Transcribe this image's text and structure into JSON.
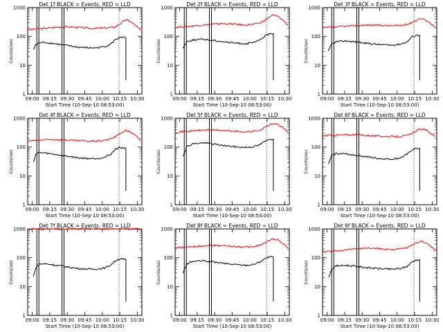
{
  "figure": {
    "panel_size": [
      213,
      160
    ],
    "font": "DejaVu Sans"
  },
  "chart_data": [
    {
      "type": "line",
      "title": "Det 1f BLACK = Events, RED = LLD",
      "xlabel": "Start Time (10-Sep-10 08:53:00)",
      "ylabel": "Counts/sec",
      "xticks": [
        "09:00",
        "09:15",
        "09:30",
        "09:45",
        "10:00",
        "10:15",
        "10:30"
      ],
      "yticks": [
        "1",
        "10",
        "100",
        "1000"
      ],
      "log_y": true,
      "ylim": [
        1,
        1000
      ],
      "series": [
        {
          "name": "LLD",
          "color": "#ff0000",
          "x": [
            0,
            0.07,
            0.15,
            0.25,
            0.35,
            0.45,
            0.55,
            0.63,
            0.7,
            0.76,
            0.81,
            0.86,
            0.9,
            0.95,
            0.99
          ],
          "values": [
            170,
            180,
            190,
            210,
            215,
            205,
            190,
            195,
            200,
            210,
            280,
            380,
            330,
            230,
            160
          ]
        },
        {
          "name": "Events",
          "color": "#000000",
          "x": [
            0.05,
            0.07,
            0.1,
            0.15,
            0.25,
            0.35,
            0.45,
            0.55,
            0.62,
            0.68,
            0.73,
            0.77,
            0.8,
            0.83,
            0.86
          ],
          "values": [
            35,
            50,
            60,
            62,
            55,
            48,
            42,
            40,
            41,
            45,
            55,
            80,
            88,
            90,
            90
          ]
        }
      ]
    },
    {
      "type": "line",
      "title": "Det 2f BLACK = Events, RED = LLD",
      "xlabel": "Start Time (10-Sep-10 08:53:00)",
      "ylabel": "Counts/sec",
      "xticks": [
        "09:00",
        "09:15",
        "09:30",
        "09:45",
        "10:00",
        "10:15",
        "10:30"
      ],
      "yticks": [
        "1",
        "10",
        "100",
        "1000"
      ],
      "log_y": true,
      "ylim": [
        1,
        1000
      ],
      "series": [
        {
          "name": "LLD",
          "color": "#ff0000",
          "x": [
            0,
            0.1,
            0.2,
            0.3,
            0.4,
            0.5,
            0.6,
            0.68,
            0.75,
            0.8,
            0.85,
            0.9,
            0.95,
            0.99
          ],
          "values": [
            210,
            220,
            240,
            260,
            280,
            270,
            250,
            260,
            300,
            400,
            550,
            500,
            350,
            240
          ]
        },
        {
          "name": "Events",
          "color": "#000000",
          "x": [
            0.07,
            0.1,
            0.15,
            0.25,
            0.35,
            0.45,
            0.55,
            0.62,
            0.68,
            0.73,
            0.78,
            0.82,
            0.86
          ],
          "values": [
            40,
            65,
            75,
            80,
            72,
            63,
            58,
            56,
            60,
            70,
            100,
            120,
            125
          ]
        }
      ]
    },
    {
      "type": "line",
      "title": "Det 3f BLACK = Events, RED = LLD",
      "xlabel": "Start Time (10-Sep-10 08:53:00)",
      "ylabel": "Counts/sec",
      "xticks": [
        "09:00",
        "09:15",
        "09:30",
        "09:45",
        "10:00",
        "10:15",
        "10:30"
      ],
      "yticks": [
        "1",
        "10",
        "100",
        "1000"
      ],
      "log_y": true,
      "ylim": [
        1,
        1000
      ],
      "series": [
        {
          "name": "LLD",
          "color": "#ff0000",
          "x": [
            0,
            0.1,
            0.2,
            0.3,
            0.4,
            0.5,
            0.6,
            0.68,
            0.75,
            0.8,
            0.85,
            0.9,
            0.95,
            0.99
          ],
          "values": [
            200,
            210,
            225,
            240,
            250,
            245,
            235,
            240,
            270,
            330,
            420,
            380,
            280,
            200
          ]
        },
        {
          "name": "Events",
          "color": "#000000",
          "x": [
            0.05,
            0.08,
            0.12,
            0.2,
            0.3,
            0.4,
            0.5,
            0.6,
            0.68,
            0.74,
            0.78,
            0.82,
            0.85
          ],
          "values": [
            30,
            55,
            65,
            70,
            64,
            57,
            52,
            50,
            54,
            65,
            95,
            110,
            110
          ]
        }
      ]
    },
    {
      "type": "line",
      "title": "Det 4f BLACK = Events, RED = LLD",
      "xlabel": "Start Time (10-Sep-10 08:53:00)",
      "ylabel": "Counts/sec",
      "xticks": [
        "09:00",
        "09:15",
        "09:30",
        "09:45",
        "10:00",
        "10:15",
        "10:30"
      ],
      "yticks": [
        "1",
        "10",
        "100",
        "1000"
      ],
      "log_y": true,
      "ylim": [
        1,
        1000
      ],
      "series": [
        {
          "name": "LLD",
          "color": "#ff0000",
          "x": [
            0,
            0.07,
            0.15,
            0.25,
            0.35,
            0.45,
            0.55,
            0.63,
            0.7,
            0.76,
            0.81,
            0.86,
            0.9,
            0.95,
            0.99
          ],
          "values": [
            160,
            170,
            180,
            185,
            175,
            165,
            160,
            165,
            180,
            220,
            300,
            380,
            340,
            240,
            160
          ]
        },
        {
          "name": "Events",
          "color": "#000000",
          "x": [
            0.05,
            0.07,
            0.1,
            0.15,
            0.25,
            0.35,
            0.45,
            0.55,
            0.62,
            0.68,
            0.73,
            0.77,
            0.8,
            0.83,
            0.86
          ],
          "values": [
            30,
            55,
            65,
            62,
            55,
            48,
            42,
            40,
            41,
            45,
            58,
            85,
            95,
            95,
            90
          ]
        }
      ]
    },
    {
      "type": "line",
      "title": "Det 5f BLACK = Events, RED = LLD",
      "xlabel": "Start Time (10-Sep-10 08:53:00)",
      "ylabel": "Counts/sec",
      "xticks": [
        "09:00",
        "09:15",
        "09:30",
        "09:45",
        "10:00",
        "10:15",
        "10:30"
      ],
      "yticks": [
        "1",
        "10",
        "100",
        "1000"
      ],
      "log_y": true,
      "ylim": [
        1,
        1000
      ],
      "series": [
        {
          "name": "LLD",
          "color": "#ff0000",
          "x": [
            0,
            0.1,
            0.2,
            0.3,
            0.4,
            0.5,
            0.6,
            0.68,
            0.75,
            0.8,
            0.85,
            0.9,
            0.95,
            0.99
          ],
          "values": [
            330,
            350,
            380,
            400,
            380,
            360,
            340,
            350,
            400,
            520,
            650,
            600,
            450,
            330
          ]
        },
        {
          "name": "Events",
          "color": "#000000",
          "x": [
            0.07,
            0.1,
            0.15,
            0.25,
            0.35,
            0.45,
            0.55,
            0.62,
            0.68,
            0.73,
            0.78,
            0.82,
            0.86
          ],
          "values": [
            50,
            100,
            130,
            140,
            125,
            110,
            100,
            98,
            102,
            115,
            150,
            190,
            190
          ]
        }
      ]
    },
    {
      "type": "line",
      "title": "Det 6f BLACK = Events, RED = LLD",
      "xlabel": "Start Time (10-Sep-10 08:53:00)",
      "ylabel": "Counts/sec",
      "xticks": [
        "09:00",
        "09:15",
        "09:30",
        "09:45",
        "10:00",
        "10:15",
        "10:30"
      ],
      "yticks": [
        "1",
        "10",
        "100",
        "1000"
      ],
      "log_y": true,
      "ylim": [
        1,
        1000
      ],
      "series": [
        {
          "name": "LLD",
          "color": "#ff0000",
          "x": [
            0,
            0.1,
            0.2,
            0.3,
            0.4,
            0.5,
            0.6,
            0.68,
            0.75,
            0.8,
            0.85,
            0.9,
            0.95,
            0.99
          ],
          "values": [
            250,
            260,
            265,
            270,
            255,
            240,
            230,
            235,
            260,
            320,
            420,
            400,
            300,
            230
          ]
        },
        {
          "name": "Events",
          "color": "#000000",
          "x": [
            0.05,
            0.08,
            0.12,
            0.2,
            0.3,
            0.4,
            0.5,
            0.6,
            0.68,
            0.74,
            0.78,
            0.82,
            0.85
          ],
          "values": [
            25,
            50,
            60,
            58,
            52,
            45,
            40,
            38,
            42,
            55,
            80,
            90,
            90
          ]
        }
      ]
    },
    {
      "type": "line",
      "title": "Det 7f BLACK = Events, RED = LLD",
      "xlabel": "Start Time (10-Sep-10 08:53:00)",
      "ylabel": "Counts/sec",
      "xticks": [
        "09:00",
        "09:15",
        "09:30",
        "09:45",
        "10:00",
        "10:15",
        "10:30"
      ],
      "yticks": [
        "1",
        "10",
        "100",
        "1000"
      ],
      "log_y": true,
      "ylim": [
        1,
        1000
      ],
      "series": [
        {
          "name": "LLD",
          "color": "#ff0000",
          "x": [
            0,
            0.1,
            0.2,
            0.3,
            0.4,
            0.5,
            0.6,
            0.7,
            0.8,
            0.9,
            0.99
          ],
          "values": [
            1000,
            1000,
            1000,
            1000,
            1000,
            1000,
            1000,
            1000,
            1000,
            1000,
            1000
          ]
        },
        {
          "name": "Events",
          "color": "#000000",
          "x": [
            0.05,
            0.07,
            0.1,
            0.15,
            0.25,
            0.35,
            0.45,
            0.55,
            0.62,
            0.68,
            0.73,
            0.77,
            0.8,
            0.83,
            0.86
          ],
          "values": [
            22,
            45,
            60,
            62,
            55,
            48,
            42,
            40,
            41,
            45,
            58,
            80,
            90,
            90,
            85
          ]
        }
      ]
    },
    {
      "type": "line",
      "title": "Det 8f BLACK = Events, RED = LLD",
      "xlabel": "Start Time (10-Sep-10 08:53:00)",
      "ylabel": "Counts/sec",
      "xticks": [
        "09:00",
        "09:15",
        "09:30",
        "09:45",
        "10:00",
        "10:15",
        "10:30"
      ],
      "yticks": [
        "1",
        "10",
        "100",
        "1000"
      ],
      "log_y": true,
      "ylim": [
        1,
        1000
      ],
      "series": [
        {
          "name": "LLD",
          "color": "#ff0000",
          "x": [
            0,
            0.1,
            0.2,
            0.3,
            0.4,
            0.5,
            0.6,
            0.68,
            0.75,
            0.8,
            0.85,
            0.9,
            0.95,
            0.99
          ],
          "values": [
            220,
            230,
            250,
            270,
            265,
            250,
            235,
            240,
            280,
            350,
            450,
            420,
            300,
            220
          ]
        },
        {
          "name": "Events",
          "color": "#000000",
          "x": [
            0.07,
            0.1,
            0.15,
            0.25,
            0.35,
            0.45,
            0.55,
            0.62,
            0.68,
            0.73,
            0.78,
            0.82,
            0.86
          ],
          "values": [
            30,
            60,
            75,
            78,
            70,
            62,
            57,
            55,
            58,
            68,
            90,
            105,
            105
          ]
        }
      ]
    },
    {
      "type": "line",
      "title": "Det 9f BLACK = Events, RED = LLD",
      "xlabel": "Start Time (10-Sep-10 08:53:00)",
      "ylabel": "Counts/sec",
      "xticks": [
        "09:00",
        "09:15",
        "09:30",
        "09:45",
        "10:00",
        "10:15",
        "10:30"
      ],
      "yticks": [
        "1",
        "10",
        "100",
        "1000"
      ],
      "log_y": true,
      "ylim": [
        1,
        1000
      ],
      "series": [
        {
          "name": "LLD",
          "color": "#ff0000",
          "x": [
            0,
            0.1,
            0.2,
            0.3,
            0.4,
            0.5,
            0.6,
            0.68,
            0.75,
            0.8,
            0.85,
            0.9,
            0.95,
            0.99
          ],
          "values": [
            160,
            170,
            190,
            210,
            215,
            205,
            195,
            200,
            230,
            290,
            370,
            340,
            250,
            170
          ]
        },
        {
          "name": "Events",
          "color": "#000000",
          "x": [
            0.05,
            0.08,
            0.12,
            0.2,
            0.3,
            0.4,
            0.5,
            0.6,
            0.68,
            0.74,
            0.78,
            0.82,
            0.85
          ],
          "values": [
            20,
            40,
            52,
            55,
            50,
            45,
            42,
            40,
            42,
            50,
            70,
            85,
            85
          ]
        }
      ]
    }
  ]
}
